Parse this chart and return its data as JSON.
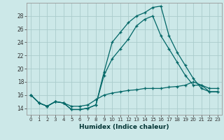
{
  "xlabel": "Humidex (Indice chaleur)",
  "ylabel": "",
  "bg_color": "#cce8e8",
  "grid_color": "#aacccc",
  "line_color": "#006666",
  "xlim": [
    -0.5,
    23.5
  ],
  "ylim": [
    13.0,
    30.0
  ],
  "xticks": [
    0,
    1,
    2,
    3,
    4,
    5,
    6,
    7,
    8,
    9,
    10,
    11,
    12,
    13,
    14,
    15,
    16,
    17,
    18,
    19,
    20,
    21,
    22,
    23
  ],
  "yticks": [
    14,
    16,
    18,
    20,
    22,
    24,
    26,
    28
  ],
  "line1_x": [
    0,
    1,
    2,
    3,
    4,
    5,
    6,
    7,
    8,
    9,
    10,
    11,
    12,
    13,
    14,
    15,
    16,
    17,
    18,
    19,
    20,
    21,
    22,
    23
  ],
  "line1_y": [
    16.0,
    14.8,
    14.3,
    15.0,
    14.8,
    13.8,
    13.8,
    14.0,
    14.5,
    19.5,
    24.0,
    25.5,
    27.0,
    28.0,
    28.5,
    29.3,
    29.5,
    25.0,
    22.5,
    20.5,
    18.5,
    17.0,
    16.5,
    16.5
  ],
  "line2_x": [
    0,
    1,
    2,
    3,
    4,
    5,
    6,
    7,
    8,
    9,
    10,
    11,
    12,
    13,
    14,
    15,
    16,
    17,
    18,
    19,
    20,
    21,
    22,
    23
  ],
  "line2_y": [
    16.0,
    14.8,
    14.3,
    15.0,
    14.8,
    13.8,
    13.8,
    14.0,
    14.5,
    19.0,
    21.5,
    23.0,
    24.5,
    26.5,
    27.5,
    28.0,
    25.0,
    23.0,
    21.0,
    19.0,
    17.5,
    17.5,
    16.5,
    16.5
  ],
  "line3_x": [
    0,
    1,
    2,
    3,
    4,
    5,
    6,
    7,
    8,
    9,
    10,
    11,
    12,
    13,
    14,
    15,
    16,
    17,
    18,
    19,
    20,
    21,
    22,
    23
  ],
  "line3_y": [
    16.0,
    14.8,
    14.3,
    15.0,
    14.8,
    14.3,
    14.3,
    14.5,
    15.3,
    16.0,
    16.3,
    16.5,
    16.7,
    16.8,
    17.0,
    17.0,
    17.0,
    17.2,
    17.3,
    17.5,
    18.0,
    17.5,
    17.0,
    17.0
  ]
}
